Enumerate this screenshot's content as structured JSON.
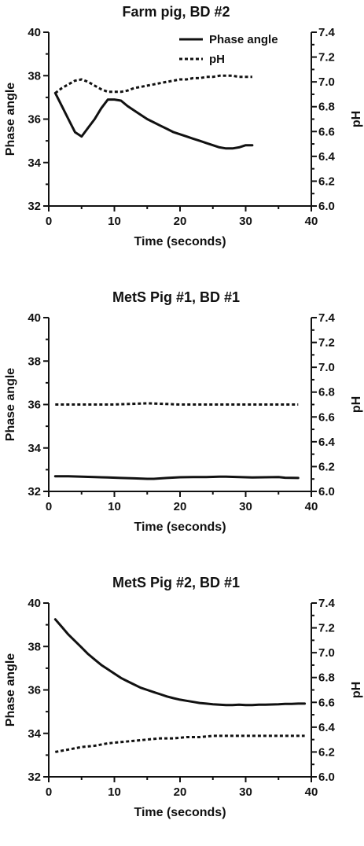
{
  "chart_data": [
    {
      "type": "line",
      "title": "Farm pig, BD #2",
      "xlabel": "Time (seconds)",
      "ylabel": "Phase angle",
      "y2label": "pH",
      "xlim": [
        0,
        40
      ],
      "ylim": [
        32,
        40
      ],
      "y2lim": [
        6.0,
        7.4
      ],
      "xticks": [
        "0",
        "10",
        "20",
        "30",
        "40"
      ],
      "yticks": [
        "32",
        "34",
        "36",
        "38",
        "40"
      ],
      "y2ticks": [
        "6.0",
        "6.2",
        "6.4",
        "6.6",
        "6.8",
        "7.0",
        "7.2",
        "7.4"
      ],
      "legend": [
        "Phase angle",
        "pH"
      ],
      "legend_position": "top-center",
      "series": [
        {
          "name": "Phase angle",
          "axis": "left",
          "style": "solid",
          "x": [
            1,
            2,
            3,
            4,
            5,
            6,
            7,
            8,
            9,
            10,
            11,
            12,
            13,
            14,
            15,
            16,
            17,
            18,
            19,
            20,
            21,
            22,
            23,
            24,
            25,
            26,
            27,
            28,
            29,
            30,
            31
          ],
          "y": [
            37.2,
            36.6,
            36.0,
            35.4,
            35.2,
            35.6,
            36.0,
            36.5,
            36.9,
            36.9,
            36.85,
            36.6,
            36.4,
            36.2,
            36.0,
            35.85,
            35.7,
            35.55,
            35.4,
            35.3,
            35.2,
            35.1,
            35.0,
            34.9,
            34.8,
            34.7,
            34.65,
            34.65,
            34.7,
            34.8,
            34.8
          ]
        },
        {
          "name": "pH",
          "axis": "right",
          "style": "dotted",
          "x": [
            1,
            2,
            3,
            4,
            5,
            6,
            7,
            8,
            9,
            10,
            11,
            12,
            13,
            14,
            15,
            16,
            17,
            18,
            19,
            20,
            21,
            22,
            23,
            24,
            25,
            26,
            27,
            28,
            29,
            30,
            31
          ],
          "y": [
            6.91,
            6.95,
            6.98,
            7.01,
            7.02,
            7.0,
            6.97,
            6.94,
            6.92,
            6.92,
            6.92,
            6.93,
            6.95,
            6.96,
            6.97,
            6.98,
            6.99,
            7.0,
            7.01,
            7.02,
            7.02,
            7.03,
            7.03,
            7.04,
            7.04,
            7.05,
            7.05,
            7.05,
            7.04,
            7.04,
            7.04
          ]
        }
      ]
    },
    {
      "type": "line",
      "title": "MetS Pig #1, BD #1",
      "xlabel": "Time (seconds)",
      "ylabel": "Phase angle",
      "y2label": "pH",
      "xlim": [
        0,
        40
      ],
      "ylim": [
        32,
        40
      ],
      "y2lim": [
        6.0,
        7.4
      ],
      "xticks": [
        "0",
        "10",
        "20",
        "30",
        "40"
      ],
      "yticks": [
        "32",
        "34",
        "36",
        "38",
        "40"
      ],
      "y2ticks": [
        "6.0",
        "6.2",
        "6.4",
        "6.6",
        "6.8",
        "7.0",
        "7.2",
        "7.4"
      ],
      "series": [
        {
          "name": "Phase angle",
          "axis": "left",
          "style": "solid",
          "x": [
            1,
            3,
            5,
            7,
            9,
            11,
            13,
            15,
            16,
            18,
            20,
            22,
            24,
            26,
            27,
            29,
            31,
            33,
            35,
            36,
            38
          ],
          "y": [
            32.7,
            32.7,
            32.68,
            32.66,
            32.64,
            32.62,
            32.6,
            32.58,
            32.58,
            32.62,
            32.65,
            32.66,
            32.66,
            32.68,
            32.68,
            32.66,
            32.64,
            32.65,
            32.66,
            32.63,
            32.62
          ]
        },
        {
          "name": "pH",
          "axis": "right",
          "style": "dotted",
          "x": [
            1,
            5,
            10,
            15,
            20,
            25,
            30,
            35,
            38
          ],
          "y": [
            6.7,
            6.7,
            6.7,
            6.71,
            6.7,
            6.7,
            6.7,
            6.7,
            6.7
          ]
        }
      ]
    },
    {
      "type": "line",
      "title": "MetS Pig #2, BD #1",
      "xlabel": "Time (seconds)",
      "ylabel": "Phase angle",
      "y2label": "pH",
      "xlim": [
        0,
        40
      ],
      "ylim": [
        32,
        40
      ],
      "y2lim": [
        6.0,
        7.4
      ],
      "xticks": [
        "0",
        "10",
        "20",
        "30",
        "40"
      ],
      "yticks": [
        "32",
        "34",
        "36",
        "38",
        "40"
      ],
      "y2ticks": [
        "6.0",
        "6.2",
        "6.4",
        "6.6",
        "6.8",
        "7.0",
        "7.2",
        "7.4"
      ],
      "series": [
        {
          "name": "Phase angle",
          "axis": "left",
          "style": "solid",
          "x": [
            1,
            2,
            3,
            4,
            5,
            6,
            7,
            8,
            9,
            10,
            11,
            12,
            13,
            14,
            15,
            16,
            17,
            18,
            19,
            20,
            21,
            22,
            23,
            24,
            25,
            26,
            27,
            28,
            29,
            30,
            31,
            32,
            33,
            34,
            35,
            36,
            37,
            38,
            39
          ],
          "y": [
            39.25,
            38.9,
            38.55,
            38.25,
            37.95,
            37.65,
            37.4,
            37.15,
            36.95,
            36.75,
            36.55,
            36.4,
            36.25,
            36.1,
            36.0,
            35.9,
            35.8,
            35.7,
            35.62,
            35.55,
            35.5,
            35.45,
            35.4,
            35.37,
            35.34,
            35.32,
            35.3,
            35.3,
            35.32,
            35.3,
            35.3,
            35.32,
            35.32,
            35.33,
            35.34,
            35.36,
            35.36,
            35.37,
            35.37
          ]
        },
        {
          "name": "pH",
          "axis": "right",
          "style": "dotted",
          "x": [
            1,
            3,
            5,
            7,
            9,
            11,
            13,
            15,
            17,
            19,
            21,
            23,
            25,
            27,
            29,
            31,
            33,
            35,
            37,
            39
          ],
          "y": [
            6.2,
            6.22,
            6.24,
            6.25,
            6.27,
            6.28,
            6.29,
            6.3,
            6.31,
            6.31,
            6.32,
            6.32,
            6.33,
            6.33,
            6.33,
            6.33,
            6.33,
            6.33,
            6.33,
            6.33
          ]
        }
      ]
    }
  ]
}
